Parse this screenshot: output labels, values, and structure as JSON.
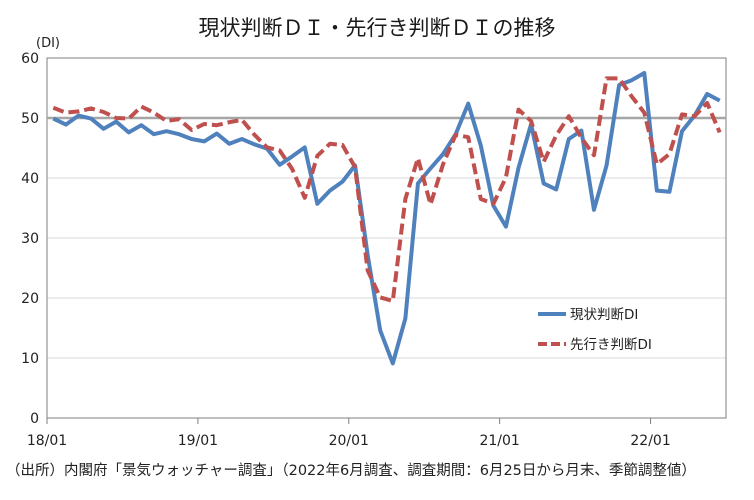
{
  "chart_data": {
    "type": "line",
    "title": "現状判断ＤＩ・先行き判断ＤＩの推移",
    "ylabel": "(DI)",
    "xlabel": "",
    "ylim": [
      0,
      60
    ],
    "yticks": [
      0,
      10,
      20,
      30,
      40,
      50,
      60
    ],
    "xticks": [
      "18/01",
      "19/01",
      "20/01",
      "21/01",
      "22/01"
    ],
    "reference_line": 50,
    "grid": true,
    "legend_position": "right",
    "x": [
      "18/01",
      "18/02",
      "18/03",
      "18/04",
      "18/05",
      "18/06",
      "18/07",
      "18/08",
      "18/09",
      "18/10",
      "18/11",
      "18/12",
      "19/01",
      "19/02",
      "19/03",
      "19/04",
      "19/05",
      "19/06",
      "19/07",
      "19/08",
      "19/09",
      "19/10",
      "19/11",
      "19/12",
      "20/01",
      "20/02",
      "20/03",
      "20/04",
      "20/05",
      "20/06",
      "20/07",
      "20/08",
      "20/09",
      "20/10",
      "20/11",
      "20/12",
      "21/01",
      "21/02",
      "21/03",
      "21/04",
      "21/05",
      "21/06",
      "21/07",
      "21/08",
      "21/09",
      "21/10",
      "21/11",
      "21/12",
      "22/01",
      "22/02",
      "22/03",
      "22/04",
      "22/05",
      "22/06"
    ],
    "series": [
      {
        "name": "現状判断DI",
        "color": "#4f81bd",
        "style": "solid",
        "values": [
          49.9,
          48.9,
          50.4,
          49.9,
          48.2,
          49.4,
          47.6,
          48.8,
          47.3,
          47.8,
          47.3,
          46.5,
          46.1,
          47.4,
          45.7,
          46.5,
          45.6,
          44.9,
          42.2,
          43.6,
          45.1,
          35.7,
          37.9,
          39.4,
          42.1,
          27.2,
          14.6,
          9.1,
          16.6,
          39.1,
          41.6,
          44.0,
          47.3,
          52.4,
          45.4,
          35.4,
          31.9,
          41.7,
          49.0,
          39.1,
          38.1,
          46.5,
          47.9,
          34.7,
          42.1,
          55.5,
          56.3,
          57.5,
          37.9,
          37.7,
          47.8,
          50.4,
          54.0,
          52.9
        ]
      },
      {
        "name": "先行き判断DI",
        "color": "#c0504d",
        "style": "dashed",
        "values": [
          51.7,
          50.9,
          51.1,
          51.6,
          51.0,
          50.0,
          49.9,
          51.9,
          50.9,
          49.5,
          49.8,
          48.0,
          49.0,
          48.8,
          49.3,
          49.7,
          47.2,
          45.1,
          44.6,
          41.5,
          36.7,
          43.7,
          45.7,
          45.5,
          41.8,
          24.6,
          20.1,
          19.5,
          36.5,
          43.3,
          35.6,
          42.3,
          47.2,
          46.8,
          36.5,
          35.7,
          40.1,
          51.4,
          49.5,
          42.7,
          47.1,
          50.3,
          46.7,
          43.8,
          56.6,
          56.6,
          53.6,
          50.9,
          42.3,
          44.0,
          50.6,
          50.3,
          52.5,
          47.6
        ]
      }
    ]
  },
  "footnote": "（出所）内閣府「景気ウォッチャー調査」（2022年6月調査、調査期間：6月25日から月末、季節調整値）"
}
